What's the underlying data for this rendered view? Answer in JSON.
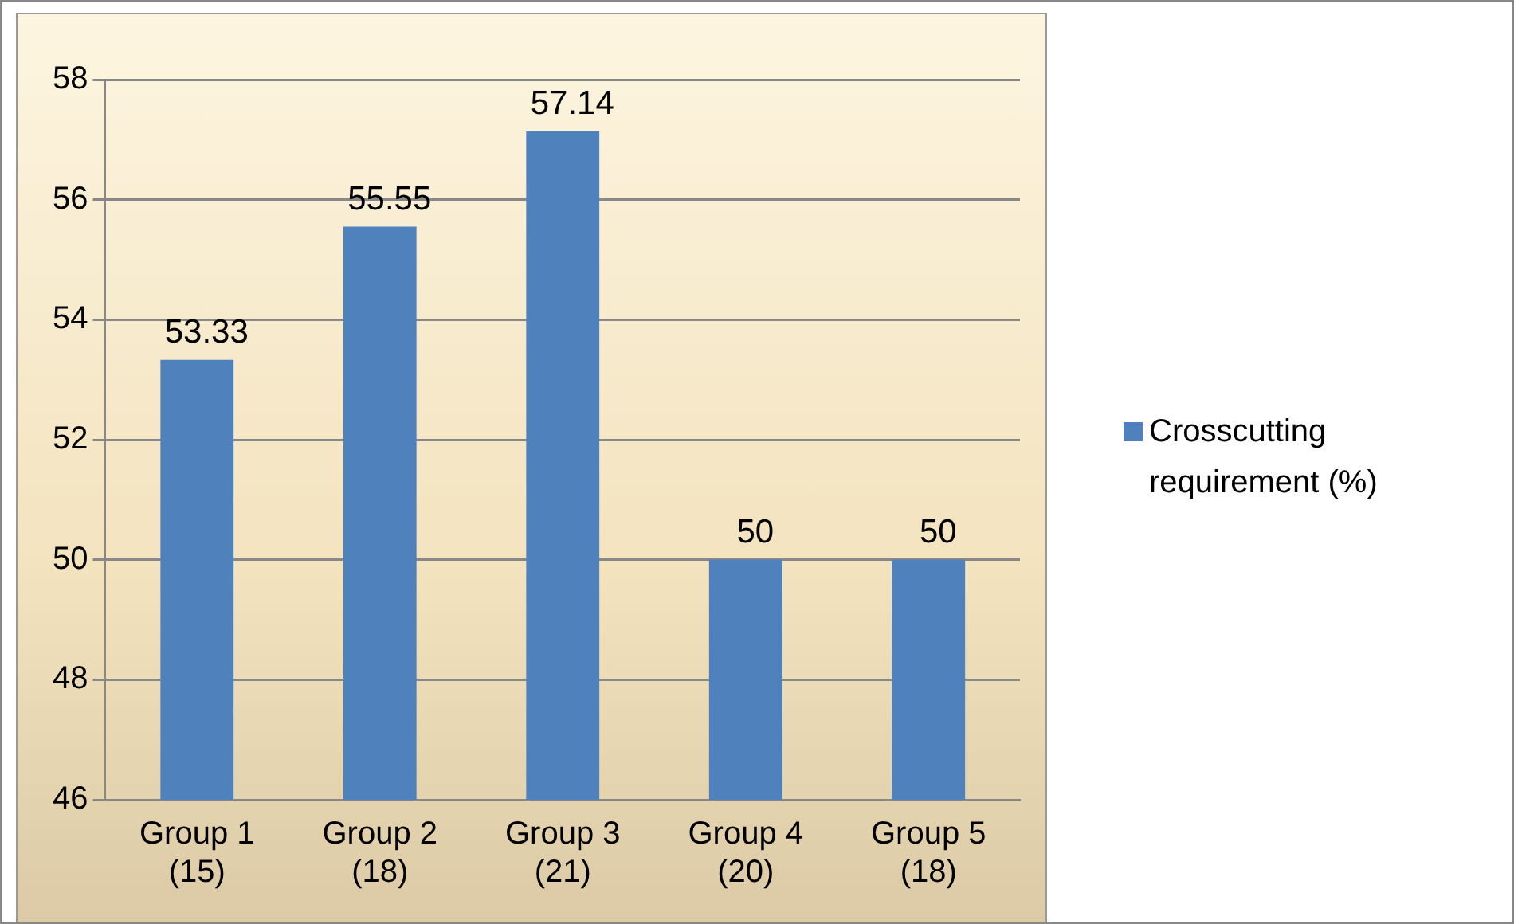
{
  "chart_data": {
    "type": "bar",
    "categories": [
      "Group 1 (15)",
      "Group 2 (18)",
      "Group 3 (21)",
      "Group 4 (20)",
      "Group 5 (18)"
    ],
    "series": [
      {
        "name": "Crosscutting requirement (%)",
        "color": "#4f81bd",
        "values": [
          53.33,
          55.55,
          57.14,
          50,
          50
        ]
      }
    ],
    "ylim": [
      46,
      58
    ],
    "yticks": [
      46,
      48,
      50,
      52,
      54,
      56,
      58
    ],
    "grid": "y",
    "legend": "right",
    "data_labels": true
  }
}
